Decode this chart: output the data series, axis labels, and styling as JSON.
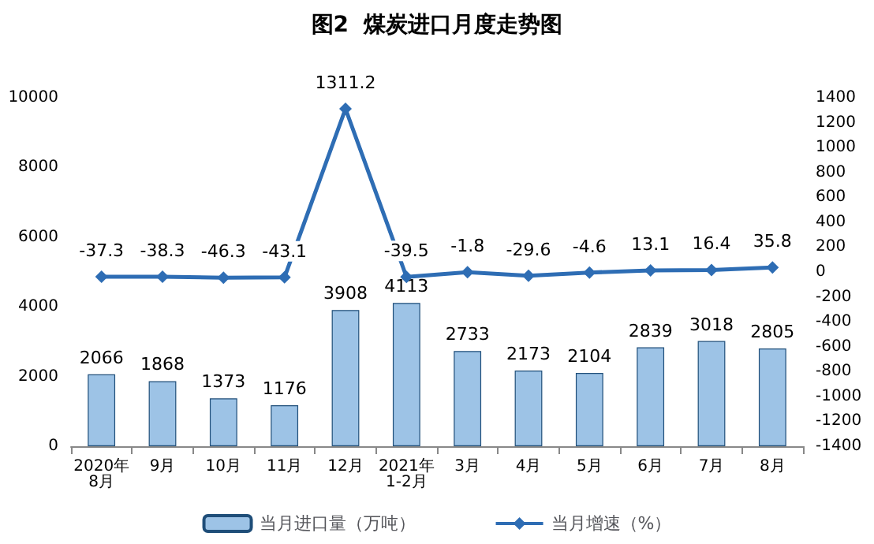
{
  "chart_data": {
    "type": "bar",
    "title": "图2  煤炭进口月度走势图",
    "categories": [
      "2020年\n8月",
      "9月",
      "10月",
      "11月",
      "12月",
      "2021年\n1-2月",
      "3月",
      "4月",
      "5月",
      "6月",
      "7月",
      "8月"
    ],
    "series": [
      {
        "name": "当月进口量（万吨）",
        "color": "#9dc3e6",
        "values": [
          2066,
          1868,
          1373,
          1176,
          3908,
          4113,
          2733,
          2173,
          2104,
          2839,
          3018,
          2805
        ]
      },
      {
        "name": "当月增速（%）",
        "type": "line",
        "axis": "y2",
        "color": "#2e6db4",
        "values": [
          -37.3,
          -38.3,
          -46.3,
          -43.1,
          1311.2,
          -39.5,
          -1.8,
          -29.6,
          -4.6,
          13.1,
          16.4,
          35.8
        ]
      }
    ],
    "ylim": [
      0,
      10000
    ],
    "yticks": [
      0,
      2000,
      4000,
      6000,
      8000,
      10000
    ],
    "y2lim": [
      -1400,
      1400
    ],
    "y2ticks": [
      -1400,
      -1200,
      -1000,
      -800,
      -600,
      -400,
      -200,
      0,
      200,
      400,
      600,
      800,
      1000,
      1200,
      1400
    ],
    "data_labels": true,
    "grid": false,
    "legend": "bottom",
    "marker": "diamond",
    "line_style": "solid"
  }
}
